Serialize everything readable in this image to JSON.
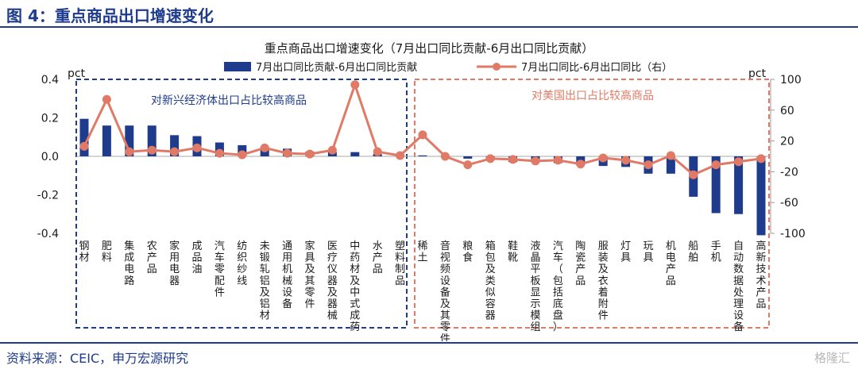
{
  "header": {
    "title": "图 4：重点商品出口增速变化"
  },
  "source": "资料来源：CEIC，申万宏源研究",
  "watermark": "格隆汇",
  "chart_data": {
    "type": "bar+line",
    "title": "重点商品出口增速变化（7月出口同比贡献-6月出口同比贡献）",
    "left_axis": {
      "label": "pct",
      "range": [
        -0.4,
        0.4
      ],
      "ticks": [
        0.4,
        0.2,
        0.0,
        -0.2,
        -0.4
      ],
      "tick_labels": [
        "0.4",
        "0.2",
        "0.0",
        "-0.2",
        "-0.4"
      ]
    },
    "right_axis": {
      "label": "pct",
      "range": [
        -100,
        100
      ],
      "ticks": [
        100,
        60,
        20,
        -20,
        -60,
        -100
      ],
      "tick_labels": [
        "100",
        "60",
        "20",
        "-20",
        "-60",
        "-100"
      ]
    },
    "categories": [
      "钢材",
      "肥料",
      "集成电路",
      "农产品",
      "家用电器",
      "成品油",
      "汽车零配件",
      "纺织纱线",
      "未锻轧铝及铝材",
      "通用机械设备",
      "家具及其零件",
      "医疗仪器及器械",
      "中药材及中式成药",
      "水产品",
      "塑料制品",
      "稀土",
      "音视频设备及其零件",
      "粮食",
      "箱包及类似容器",
      "鞋靴",
      "液晶平板显示模组",
      "汽车（包括底盘）",
      "陶瓷产品",
      "服装及衣着附件",
      "灯具",
      "玩具",
      "机电产品",
      "船舶",
      "手机",
      "自动数据处理设备",
      "高新技术产品"
    ],
    "series": [
      {
        "name": "7月出口同比贡献-6月出口同比贡献",
        "type": "bar",
        "axis": "left",
        "color": "#1f3c8c",
        "values": [
          0.195,
          0.16,
          0.16,
          0.16,
          0.11,
          0.105,
          0.072,
          0.058,
          0.048,
          0.04,
          0.025,
          0.022,
          0.022,
          0.012,
          0.005,
          0.005,
          -0.005,
          -0.012,
          -0.015,
          -0.03,
          -0.032,
          -0.035,
          -0.045,
          -0.05,
          -0.055,
          -0.09,
          -0.09,
          -0.21,
          -0.295,
          -0.3,
          -0.41
        ]
      },
      {
        "name": "7月出口同比-6月出口同比（右）",
        "type": "line",
        "axis": "right",
        "color": "#e07a66",
        "values": [
          13,
          74,
          6,
          8,
          6,
          11,
          4,
          2,
          11,
          4,
          3,
          8,
          93,
          6,
          1,
          28,
          0,
          -11,
          -3,
          -4,
          -6,
          -5,
          -10,
          -2,
          -5,
          -11,
          1,
          -24,
          -11,
          -7,
          -3
        ]
      }
    ],
    "annotations": [
      {
        "text": "对新兴经济体出口占比较高商品",
        "color": "#1f3c8c",
        "range": [
          0,
          14
        ]
      },
      {
        "text": "对美国出口占比较高商品",
        "color": "#e07a66",
        "range": [
          15,
          30
        ]
      }
    ]
  }
}
